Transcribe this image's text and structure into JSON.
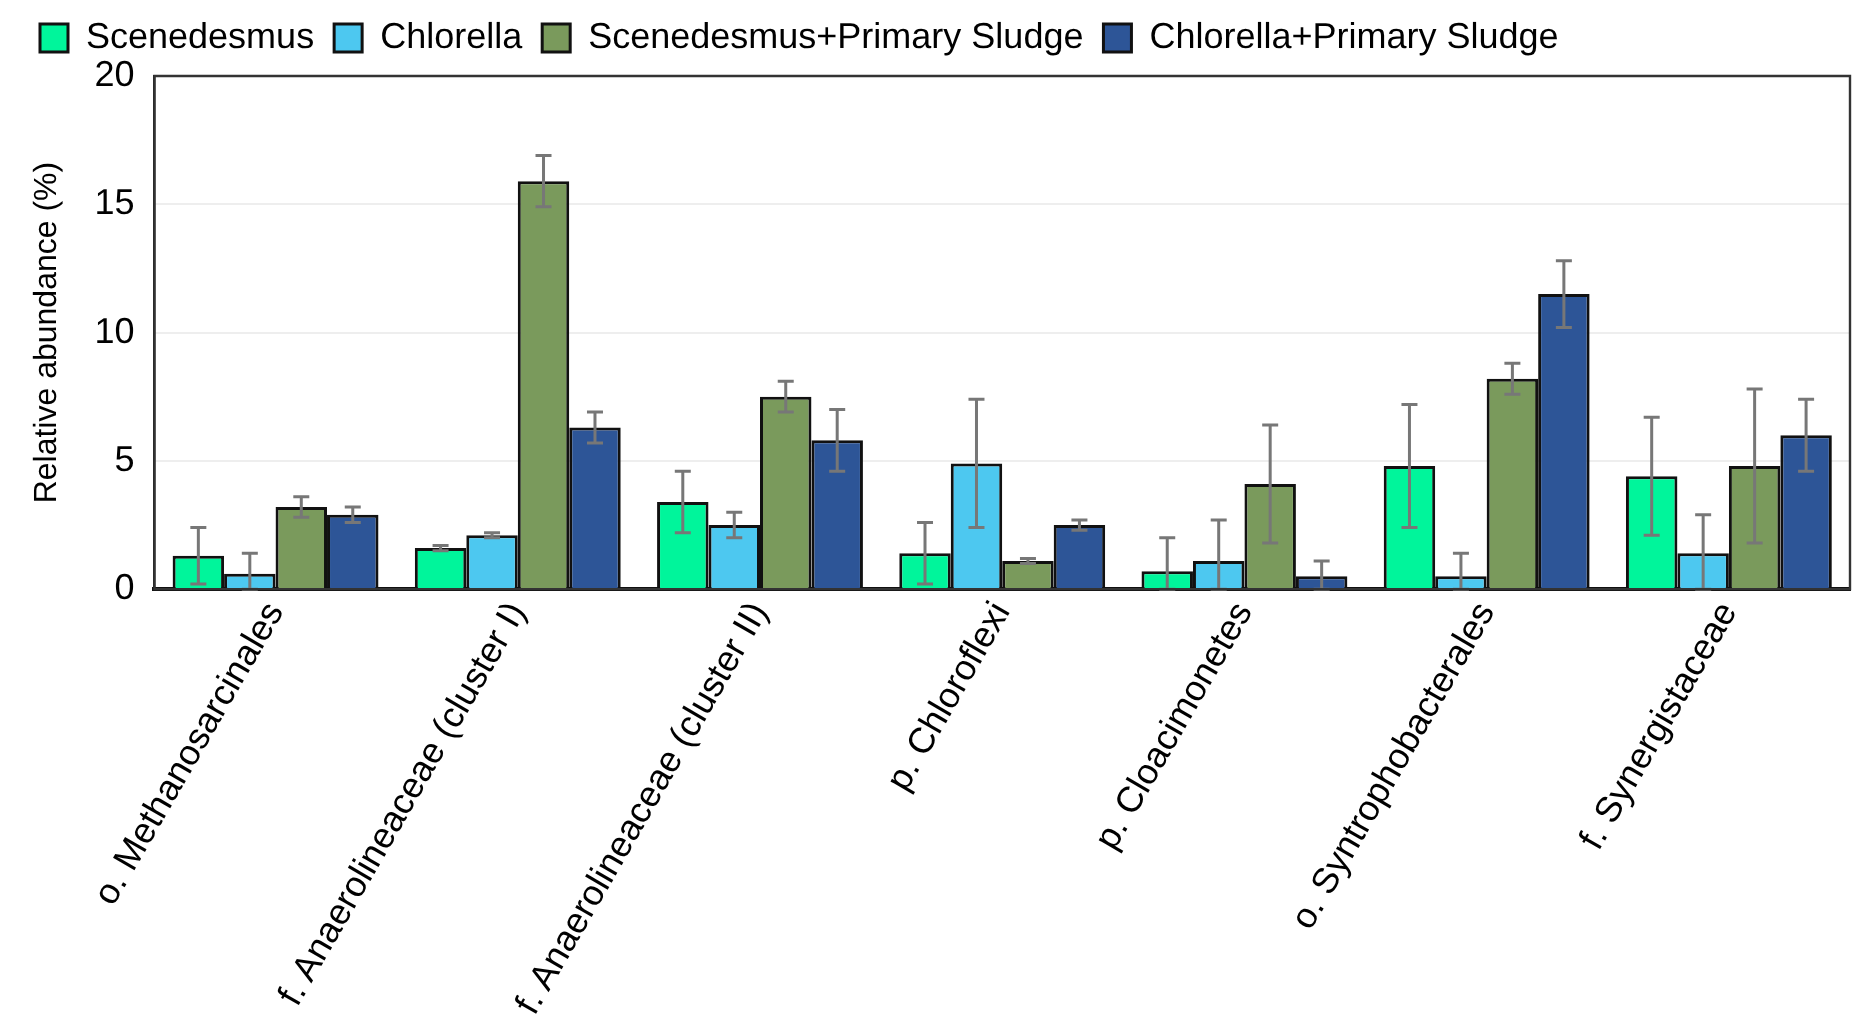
{
  "chart_data": {
    "type": "bar",
    "ylabel": "Relative abundance (%)",
    "categories": [
      "o. Methanosarcinales",
      "f. Anaerolineaceae (cluster I)",
      "f. Anaerolineaceae (cluster II)",
      "p. Chloroflexi",
      "p. Cloacimonetes",
      "o. Syntrophobacterales",
      "f. Synergistaceae"
    ],
    "series": [
      {
        "name": "Scenedesmus",
        "color": "#00f59b",
        "values": [
          1.3,
          1.6,
          3.4,
          1.4,
          0.7,
          4.8,
          4.4
        ],
        "errors": [
          [
            0.2,
            2.4
          ],
          [
            1.5,
            1.7
          ],
          [
            2.2,
            4.6
          ],
          [
            0.2,
            2.6
          ],
          [
            0,
            2.0
          ],
          [
            2.4,
            7.2
          ],
          [
            2.1,
            6.7
          ]
        ]
      },
      {
        "name": "Chlorella",
        "color": "#4dc8f0",
        "values": [
          0.6,
          2.1,
          2.5,
          4.9,
          1.1,
          0.5,
          1.4
        ],
        "errors": [
          [
            0,
            1.4
          ],
          [
            2.0,
            2.2
          ],
          [
            2.0,
            3.0
          ],
          [
            2.4,
            7.4
          ],
          [
            0,
            2.7
          ],
          [
            0,
            1.4
          ],
          [
            0,
            2.9
          ]
        ]
      },
      {
        "name": "Scenedesmus+Primary Sludge",
        "color": "#7a9a5c",
        "values": [
          3.2,
          15.9,
          7.5,
          1.1,
          4.1,
          8.2,
          4.8
        ],
        "errors": [
          [
            2.8,
            3.6
          ],
          [
            14.9,
            16.9
          ],
          [
            6.9,
            8.1
          ],
          [
            1.0,
            1.2
          ],
          [
            1.8,
            6.4
          ],
          [
            7.6,
            8.8
          ],
          [
            1.8,
            7.8
          ]
        ]
      },
      {
        "name": "Chlorella+Primary Sludge",
        "color": "#2d5597",
        "values": [
          2.9,
          6.3,
          5.8,
          2.5,
          0.5,
          11.5,
          6.0
        ],
        "errors": [
          [
            2.6,
            3.2
          ],
          [
            5.7,
            6.9
          ],
          [
            4.6,
            7.0
          ],
          [
            2.3,
            2.7
          ],
          [
            0,
            1.1
          ],
          [
            10.2,
            12.8
          ],
          [
            4.6,
            7.4
          ]
        ]
      }
    ],
    "ylim": [
      0,
      20
    ],
    "yticks": [
      0,
      5,
      10,
      15,
      20
    ],
    "grid": "y",
    "legend": "top"
  }
}
